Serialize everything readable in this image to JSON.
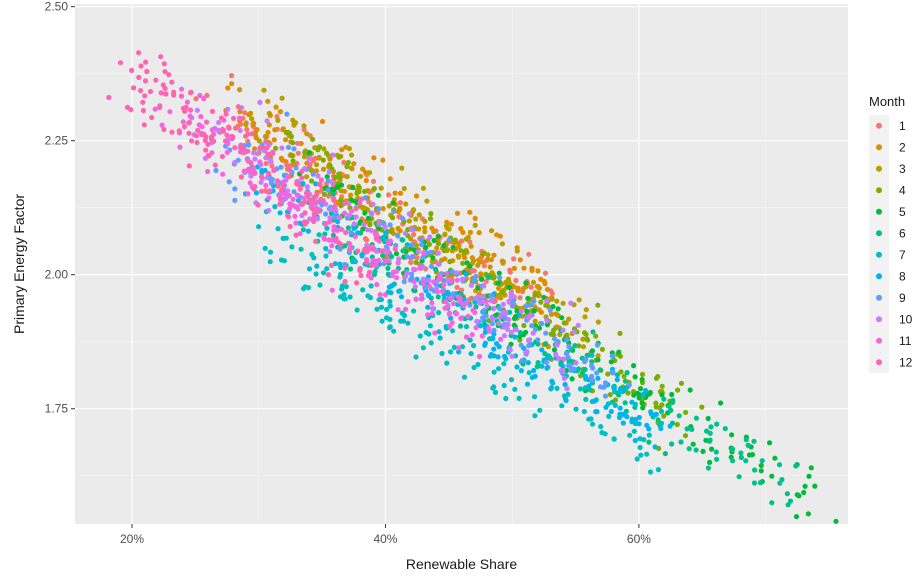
{
  "chart_data": {
    "type": "scatter",
    "xlabel": "Renewable Share",
    "ylabel": "Primary Energy Factor",
    "x_ticks": [
      "20%",
      "40%",
      "60%"
    ],
    "y_ticks": [
      "1.75",
      "2.00",
      "2.25",
      "2.50"
    ],
    "x_tick_values": [
      20,
      40,
      60
    ],
    "y_tick_values": [
      1.75,
      2.0,
      2.25,
      2.5
    ],
    "xlim": [
      15.5,
      76.5
    ],
    "ylim": [
      1.535,
      2.505
    ],
    "grid": true,
    "legend": {
      "title": "Month",
      "position": "right",
      "entries": [
        "1",
        "2",
        "3",
        "4",
        "5",
        "6",
        "7",
        "8",
        "9",
        "10",
        "11",
        "12"
      ]
    },
    "series": [
      {
        "name": "1",
        "color": "#F8766D",
        "x": [
          27,
          34,
          40,
          46,
          52
        ],
        "y": [
          2.3,
          2.19,
          2.1,
          2.02,
          1.95
        ],
        "spread": 0.032
      },
      {
        "name": "2",
        "color": "#DE8C00",
        "x": [
          28,
          35,
          42,
          48,
          54
        ],
        "y": [
          2.31,
          2.2,
          2.1,
          2.02,
          1.93
        ],
        "spread": 0.032
      },
      {
        "name": "3",
        "color": "#B79F00",
        "x": [
          30,
          37,
          44,
          50,
          56
        ],
        "y": [
          2.29,
          2.17,
          2.07,
          1.98,
          1.89
        ],
        "spread": 0.032
      },
      {
        "name": "4",
        "color": "#7CAE00",
        "x": [
          32,
          40,
          48,
          56,
          64
        ],
        "y": [
          2.24,
          2.1,
          1.98,
          1.86,
          1.74
        ],
        "spread": 0.03
      },
      {
        "name": "5",
        "color": "#00BA38",
        "x": [
          34,
          44,
          54,
          64,
          74
        ],
        "y": [
          2.17,
          2.02,
          1.87,
          1.73,
          1.58
        ],
        "spread": 0.03
      },
      {
        "name": "6",
        "color": "#00C08B",
        "x": [
          34,
          44,
          54,
          63,
          72
        ],
        "y": [
          2.12,
          1.98,
          1.84,
          1.72,
          1.61
        ],
        "spread": 0.028
      },
      {
        "name": "7",
        "color": "#00BFC4",
        "x": [
          30,
          38,
          46,
          54,
          62
        ],
        "y": [
          2.1,
          1.97,
          1.86,
          1.77,
          1.68
        ],
        "spread": 0.03
      },
      {
        "name": "8",
        "color": "#00B4F0",
        "x": [
          30,
          38,
          46,
          54,
          62
        ],
        "y": [
          2.18,
          2.05,
          1.93,
          1.82,
          1.72
        ],
        "spread": 0.032
      },
      {
        "name": "9",
        "color": "#619CFF",
        "x": [
          28,
          36,
          43,
          50,
          58
        ],
        "y": [
          2.24,
          2.12,
          2.02,
          1.92,
          1.8
        ],
        "spread": 0.035
      },
      {
        "name": "10",
        "color": "#C77CFF",
        "x": [
          26,
          33,
          40,
          47,
          55
        ],
        "y": [
          2.29,
          2.17,
          2.06,
          1.96,
          1.84
        ],
        "spread": 0.035
      },
      {
        "name": "11",
        "color": "#F564E3",
        "x": [
          23,
          30,
          36,
          42,
          48
        ],
        "y": [
          2.33,
          2.2,
          2.08,
          1.99,
          1.9
        ],
        "spread": 0.032
      },
      {
        "name": "12",
        "color": "#FF64B0",
        "x": [
          20,
          24,
          28,
          33,
          40
        ],
        "y": [
          2.38,
          2.31,
          2.24,
          2.15,
          2.03
        ],
        "spread": 0.035
      }
    ]
  }
}
